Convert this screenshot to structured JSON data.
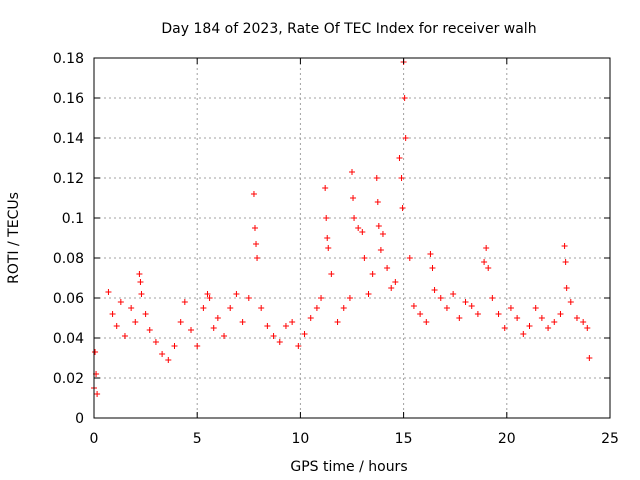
{
  "chart_data": {
    "type": "scatter",
    "title": "Day 184 of 2023, Rate Of TEC Index for receiver walh",
    "xlabel": "GPS time / hours",
    "ylabel": "ROTI / TECUs",
    "xlim": [
      0,
      25
    ],
    "ylim": [
      0,
      0.18
    ],
    "x_ticks": [
      0,
      5,
      10,
      15,
      20,
      25
    ],
    "x_tick_labels": [
      "0",
      "5",
      "10",
      "15",
      "20",
      "25"
    ],
    "y_ticks": [
      0,
      0.02,
      0.04,
      0.06,
      0.08,
      0.1,
      0.12,
      0.14,
      0.16,
      0.18
    ],
    "y_tick_labels": [
      "0",
      "0.02",
      "0.04",
      "0.06",
      "0.08",
      "0.1",
      "0.12",
      "0.14",
      "0.16",
      "0.18"
    ],
    "grid": true,
    "marker": "plus",
    "color": "#ff0000",
    "series": [
      {
        "name": "ROTI",
        "x": [
          0.0,
          0.05,
          0.1,
          0.15,
          0.7,
          0.9,
          1.1,
          1.3,
          1.5,
          1.8,
          2.0,
          2.2,
          2.25,
          2.3,
          2.5,
          2.7,
          3.0,
          3.3,
          3.6,
          3.9,
          4.2,
          4.4,
          4.7,
          5.0,
          5.3,
          5.5,
          5.6,
          5.8,
          6.0,
          6.3,
          6.6,
          6.9,
          7.2,
          7.5,
          7.75,
          7.8,
          7.85,
          7.9,
          8.1,
          8.4,
          8.7,
          9.0,
          9.3,
          9.6,
          9.9,
          10.2,
          10.5,
          10.8,
          11.0,
          11.2,
          11.25,
          11.3,
          11.35,
          11.5,
          11.8,
          12.1,
          12.4,
          12.5,
          12.55,
          12.6,
          12.8,
          13.0,
          13.1,
          13.3,
          13.5,
          13.7,
          13.75,
          13.8,
          13.9,
          14.0,
          14.2,
          14.4,
          14.6,
          14.8,
          14.9,
          14.95,
          15.0,
          15.05,
          15.1,
          15.3,
          15.5,
          15.8,
          16.1,
          16.3,
          16.4,
          16.5,
          16.8,
          17.1,
          17.4,
          17.7,
          18.0,
          18.3,
          18.6,
          18.9,
          19.0,
          19.1,
          19.3,
          19.6,
          19.9,
          20.2,
          20.5,
          20.8,
          21.1,
          21.4,
          21.7,
          22.0,
          22.3,
          22.6,
          22.8,
          22.85,
          22.9,
          23.1,
          23.4,
          23.7,
          23.9,
          24.0
        ],
        "values": [
          0.015,
          0.033,
          0.022,
          0.012,
          0.063,
          0.052,
          0.046,
          0.058,
          0.041,
          0.055,
          0.048,
          0.072,
          0.068,
          0.062,
          0.052,
          0.044,
          0.038,
          0.032,
          0.029,
          0.036,
          0.048,
          0.058,
          0.044,
          0.036,
          0.055,
          0.062,
          0.06,
          0.045,
          0.05,
          0.041,
          0.055,
          0.062,
          0.048,
          0.06,
          0.112,
          0.095,
          0.087,
          0.08,
          0.055,
          0.046,
          0.041,
          0.038,
          0.046,
          0.048,
          0.036,
          0.042,
          0.05,
          0.055,
          0.06,
          0.115,
          0.1,
          0.09,
          0.085,
          0.072,
          0.048,
          0.055,
          0.06,
          0.123,
          0.11,
          0.1,
          0.095,
          0.093,
          0.08,
          0.062,
          0.072,
          0.12,
          0.108,
          0.096,
          0.084,
          0.092,
          0.075,
          0.065,
          0.068,
          0.13,
          0.12,
          0.105,
          0.178,
          0.16,
          0.14,
          0.08,
          0.056,
          0.052,
          0.048,
          0.082,
          0.075,
          0.064,
          0.06,
          0.055,
          0.062,
          0.05,
          0.058,
          0.056,
          0.052,
          0.078,
          0.085,
          0.075,
          0.06,
          0.052,
          0.045,
          0.055,
          0.05,
          0.042,
          0.046,
          0.055,
          0.05,
          0.045,
          0.048,
          0.052,
          0.086,
          0.078,
          0.065,
          0.058,
          0.05,
          0.048,
          0.045,
          0.03
        ]
      }
    ]
  }
}
